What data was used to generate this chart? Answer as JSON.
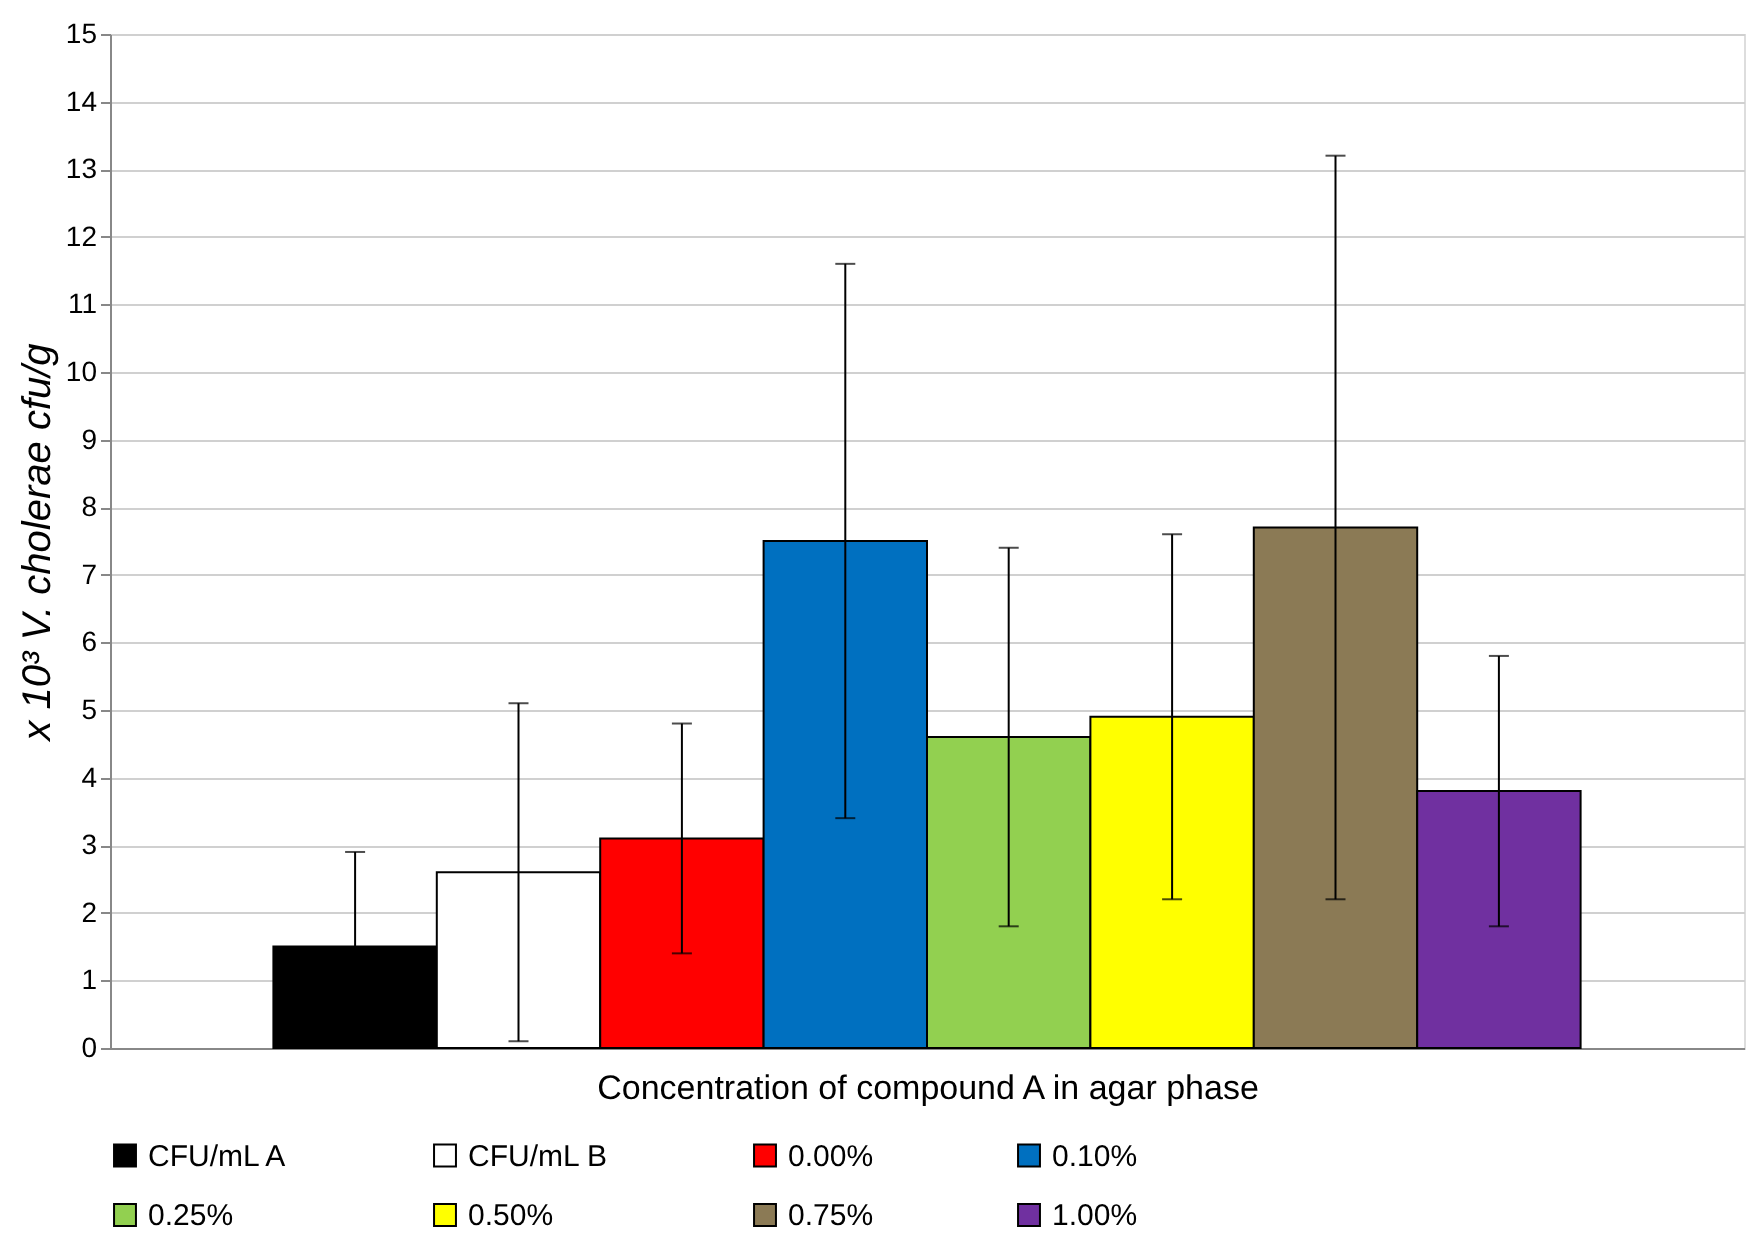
{
  "chart_data": {
    "type": "bar",
    "xlabel": "Concentration of compound A in agar phase",
    "ylabel": "x 10³ V. cholerae cfu/g",
    "categories": [
      null
    ],
    "ylim": [
      0,
      15
    ],
    "yticks": [
      0,
      1,
      2,
      3,
      4,
      5,
      6,
      7,
      8,
      9,
      10,
      11,
      12,
      13,
      14,
      15
    ],
    "grid": "y",
    "legend": "bottom",
    "tick_labels": "y",
    "series": [
      {
        "name": "CFU/mL A",
        "color": "#000000",
        "values": [
          1.5
        ],
        "errors": [
          1.4
        ]
      },
      {
        "name": "CFU/mL B",
        "color": "#ffffff",
        "values": [
          2.6
        ],
        "errors": [
          2.5
        ]
      },
      {
        "name": "0.00%",
        "color": "#ff0000",
        "values": [
          3.1
        ],
        "errors": [
          1.7
        ]
      },
      {
        "name": "0.10%",
        "color": "#0070c0",
        "values": [
          7.5
        ],
        "errors": [
          4.1
        ]
      },
      {
        "name": "0.25%",
        "color": "#92d050",
        "values": [
          4.6
        ],
        "errors": [
          2.8
        ]
      },
      {
        "name": "0.50%",
        "color": "#ffff00",
        "values": [
          4.9
        ],
        "errors": [
          2.7
        ]
      },
      {
        "name": "0.75%",
        "color": "#8b7a55",
        "values": [
          7.7
        ],
        "errors": [
          5.5
        ]
      },
      {
        "name": "1.00%",
        "color": "#7030a0",
        "values": [
          3.8
        ],
        "errors": [
          2.0
        ]
      }
    ]
  }
}
